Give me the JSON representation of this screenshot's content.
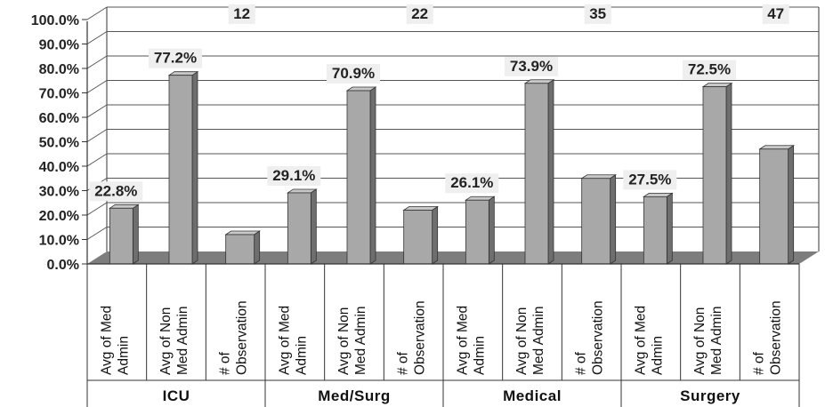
{
  "chart_data": {
    "type": "bar",
    "groups": [
      {
        "name": "ICU",
        "bars": [
          {
            "category": "Avg of Med Admin",
            "value": 22.8,
            "label": "22.8%"
          },
          {
            "category": "Avg of Non Med Admin",
            "value": 77.2,
            "label": "77.2%"
          },
          {
            "category": "# of Observation",
            "value": 12,
            "label": "12"
          }
        ]
      },
      {
        "name": "Med/Surg",
        "bars": [
          {
            "category": "Avg of Med Admin",
            "value": 29.1,
            "label": "29.1%"
          },
          {
            "category": "Avg of Non Med Admin",
            "value": 70.9,
            "label": "70.9%"
          },
          {
            "category": "# of Observation",
            "value": 22,
            "label": "22"
          }
        ]
      },
      {
        "name": "Medical",
        "bars": [
          {
            "category": "Avg of Med Admin",
            "value": 26.1,
            "label": "26.1%"
          },
          {
            "category": "Avg of Non Med Admin",
            "value": 73.9,
            "label": "73.9%"
          },
          {
            "category": "# of Observation",
            "value": 35,
            "label": "35"
          }
        ]
      },
      {
        "name": "Surgery",
        "bars": [
          {
            "category": "Avg of Med Admin",
            "value": 27.5,
            "label": "27.5%"
          },
          {
            "category": "Avg of Non Med Admin",
            "value": 72.5,
            "label": "72.5%"
          },
          {
            "category": "# of Observation",
            "value": 47,
            "label": "47"
          }
        ]
      }
    ],
    "category_labels": [
      [
        "Avg of Med",
        "Admin"
      ],
      [
        "Avg of Non",
        "Med Admin"
      ],
      [
        "# of",
        "Observation"
      ]
    ],
    "y_ticks": [
      "0.0%",
      "10.0%",
      "20.0%",
      "30.0%",
      "40.0%",
      "50.0%",
      "60.0%",
      "70.0%",
      "80.0%",
      "90.0%",
      "100.0%"
    ],
    "ylim": [
      0,
      100
    ],
    "grid": true,
    "style_3d": true,
    "colors": {
      "bar_front": "#a8a8a8",
      "bar_side": "#6e6e6e",
      "bar_top": "#c8c8c8",
      "floor": "#7d7d7d",
      "grid": "#555555",
      "label_bg": "#efefef"
    },
    "note": ""
  }
}
